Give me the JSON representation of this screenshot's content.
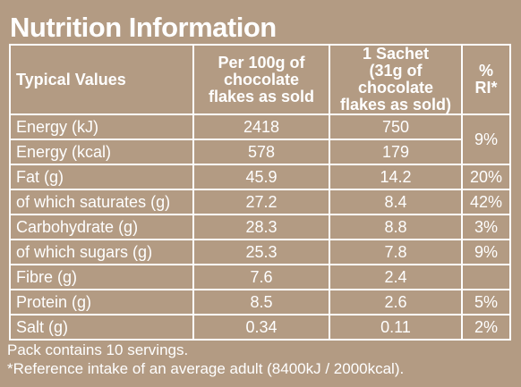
{
  "title": "Nutrition Information",
  "headers": {
    "typical": "Typical Values",
    "per100_lines": [
      "Per 100g of",
      "chocolate",
      "flakes as sold"
    ],
    "sachet_lines": [
      "1 Sachet",
      "(31g of chocolate",
      "flakes as sold)"
    ],
    "ri_lines": [
      "%",
      "RI*"
    ]
  },
  "rows": [
    {
      "label": "Energy (kJ)",
      "per100": "2418",
      "sachet": "750"
    },
    {
      "label": "Energy (kcal)",
      "per100": "578",
      "sachet": "179"
    },
    {
      "label": "Fat (g)",
      "per100": "45.9",
      "sachet": "14.2",
      "ri": "20%"
    },
    {
      "label": "of which saturates (g)",
      "per100": "27.2",
      "sachet": "8.4",
      "ri": "42%"
    },
    {
      "label": "Carbohydrate (g)",
      "per100": "28.3",
      "sachet": "8.8",
      "ri": "3%"
    },
    {
      "label": "of which sugars (g)",
      "per100": "25.3",
      "sachet": "7.8",
      "ri": "9%"
    },
    {
      "label": "Fibre (g)",
      "per100": "7.6",
      "sachet": "2.4",
      "ri": ""
    },
    {
      "label": "Protein (g)",
      "per100": "8.5",
      "sachet": "2.6",
      "ri": "5%"
    },
    {
      "label": "Salt (g)",
      "per100": "0.34",
      "sachet": "0.11",
      "ri": "2%"
    }
  ],
  "energy_ri": "9%",
  "footer": {
    "servings": "Pack contains 10 servings.",
    "reference": "*Reference intake of an average adult (8400kJ / 2000kcal)."
  }
}
